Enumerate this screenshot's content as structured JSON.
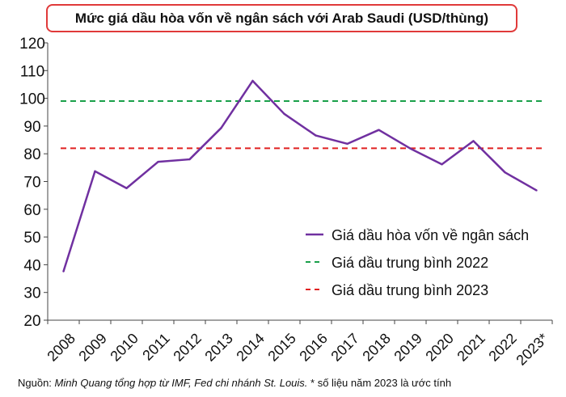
{
  "chart_data": {
    "type": "line",
    "title": "Mức giá dầu hòa vốn về ngân sách với Arab Saudi (USD/thùng)",
    "categories": [
      "2008",
      "2009",
      "2010",
      "2011",
      "2012",
      "2013",
      "2014",
      "2015",
      "2016",
      "2017",
      "2018",
      "2019",
      "2020",
      "2021",
      "2022",
      "2023*"
    ],
    "series": [
      {
        "name": "Giá dầu hòa vốn về ngân sách",
        "color": "#7030a0",
        "style": "solid",
        "values": [
          37.6,
          73.7,
          67.6,
          77.1,
          78.0,
          89.3,
          106.3,
          94.4,
          86.6,
          83.6,
          88.6,
          81.9,
          76.2,
          84.6,
          73.3,
          66.8
        ]
      },
      {
        "name": "Giá dầu trung bình 2022",
        "color": "#1aa04a",
        "style": "dashed",
        "value": 99
      },
      {
        "name": "Giá dầu trung bình 2023",
        "color": "#e02020",
        "style": "dashed",
        "value": 82
      }
    ],
    "ylim": [
      20,
      120
    ],
    "yticks": [
      "20",
      "30",
      "40",
      "50",
      "60",
      "70",
      "80",
      "90",
      "100",
      "110",
      "120"
    ],
    "xlabel": "",
    "ylabel": "",
    "legend_position": "bottom-right",
    "grid": false
  },
  "source": {
    "prefix": "Nguồn: ",
    "italic": "Minh Quang tổng hợp từ IMF, Fed chi nhánh St. Louis.",
    "suffix": " * số liệu năm 2023 là ước tính"
  }
}
